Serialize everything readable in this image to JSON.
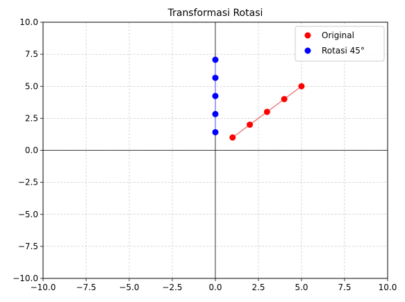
{
  "chart_data": {
    "type": "scatter",
    "title": "Transformasi Rotasi",
    "xlabel": "",
    "ylabel": "",
    "xlim": [
      -10,
      10
    ],
    "ylim": [
      -10,
      10
    ],
    "grid": true,
    "grid_style": "dashed",
    "axis_lines_through_origin": true,
    "legend_position": "top-right",
    "x_ticks": [
      -10,
      -7.5,
      -5,
      -2.5,
      0,
      2.5,
      5,
      7.5,
      10
    ],
    "y_ticks": [
      -10,
      -7.5,
      -5,
      -2.5,
      0,
      2.5,
      5,
      7.5,
      10
    ],
    "x_tick_labels": [
      "−10.0",
      "−7.5",
      "−5.0",
      "−2.5",
      "0.0",
      "2.5",
      "5.0",
      "7.5",
      "10.0"
    ],
    "y_tick_labels": [
      "−10.0",
      "−7.5",
      "−5.0",
      "−2.5",
      "0.0",
      "2.5",
      "5.0",
      "7.5",
      "10.0"
    ],
    "series": [
      {
        "name": "Original",
        "color": "#ff0000",
        "line_color": "#f08080",
        "connected": true,
        "points": [
          [
            1,
            1
          ],
          [
            2,
            2
          ],
          [
            3,
            3
          ],
          [
            4,
            4
          ],
          [
            5,
            5
          ]
        ]
      },
      {
        "name": "Rotasi 45°",
        "color": "#0000ff",
        "line_color": "#8080ff",
        "connected": true,
        "points": [
          [
            0,
            1.41
          ],
          [
            0,
            2.83
          ],
          [
            0,
            4.24
          ],
          [
            0,
            5.66
          ],
          [
            0,
            7.07
          ]
        ]
      }
    ]
  }
}
